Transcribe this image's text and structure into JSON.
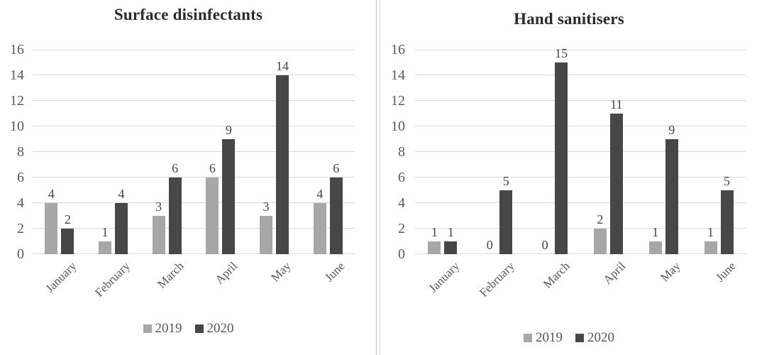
{
  "page": {
    "background": "#ffffff"
  },
  "chart_data": [
    {
      "type": "bar",
      "title": "Surface disinfectants",
      "categories": [
        "January",
        "February",
        "March",
        "April",
        "May",
        "June"
      ],
      "series": [
        {
          "name": "2019",
          "color": "#a7a7a7",
          "values": [
            4,
            1,
            3,
            6,
            3,
            4
          ]
        },
        {
          "name": "2020",
          "color": "#474747",
          "values": [
            2,
            4,
            6,
            9,
            14,
            6
          ]
        }
      ],
      "xlabel": "",
      "ylabel": "",
      "ylim": [
        0,
        16
      ],
      "yticks": [
        0,
        2,
        4,
        6,
        8,
        10,
        12,
        14,
        16
      ],
      "grid": true,
      "gridline_color": "#d9d9d9",
      "data_labels": true,
      "legend_position": "bottom"
    },
    {
      "type": "bar",
      "title": "Hand sanitisers",
      "categories": [
        "January",
        "February",
        "March",
        "April",
        "May",
        "June"
      ],
      "series": [
        {
          "name": "2019",
          "color": "#a7a7a7",
          "values": [
            1,
            0,
            0,
            2,
            1,
            1
          ]
        },
        {
          "name": "2020",
          "color": "#474747",
          "values": [
            1,
            5,
            15,
            11,
            9,
            5
          ]
        }
      ],
      "xlabel": "",
      "ylabel": "",
      "ylim": [
        0,
        16
      ],
      "yticks": [
        0,
        2,
        4,
        6,
        8,
        10,
        12,
        14,
        16
      ],
      "grid": true,
      "gridline_color": "#d9d9d9",
      "data_labels": true,
      "legend_position": "bottom"
    }
  ]
}
